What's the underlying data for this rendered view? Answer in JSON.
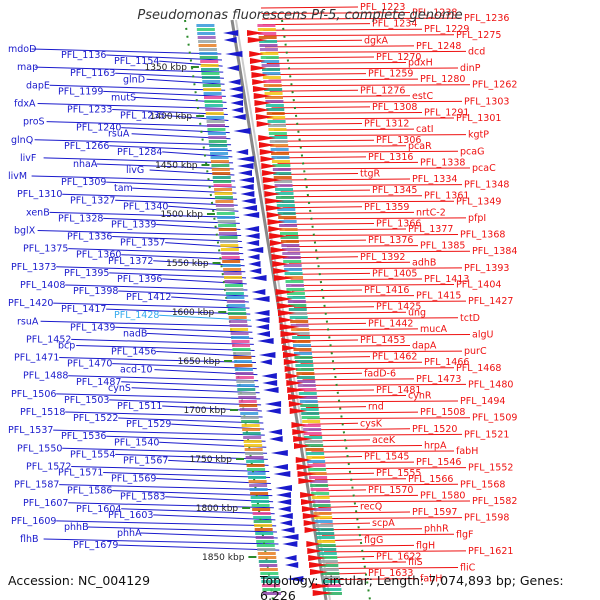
{
  "title": "Pseudomonas fluorescens Pf-5, complete genome",
  "accession": "Accession: NC_004129",
  "topology": "Topology: circular; Length: 7,074,893 bp; Genes: 6,226",
  "colors": {
    "left": "#1a1acc",
    "right": "#ee1111",
    "highlight": "#33aaee",
    "tick": "#2a8a2a"
  },
  "kbp_ticks": [
    "1350 kbp",
    "1400 kbp",
    "1450 kbp",
    "1500 kbp",
    "1550 kbp",
    "1600 kbp",
    "1650 kbp",
    "1700 kbp",
    "1750 kbp",
    "1800 kbp",
    "1850 kbp"
  ],
  "left_labels": [
    {
      "text": "mdoD"
    },
    {
      "text": "PFL_1136"
    },
    {
      "text": "PFL_1154"
    },
    {
      "text": "map"
    },
    {
      "text": "PFL_1163"
    },
    {
      "text": "glnD"
    },
    {
      "text": "dapE"
    },
    {
      "text": "PFL_1199"
    },
    {
      "text": "mutS"
    },
    {
      "text": "fdxA"
    },
    {
      "text": "PFL_1233"
    },
    {
      "text": "PFL_1235"
    },
    {
      "text": "proS"
    },
    {
      "text": "PFL_1240"
    },
    {
      "text": "rsuA"
    },
    {
      "text": "glnQ"
    },
    {
      "text": "PFL_1266"
    },
    {
      "text": "PFL_1284"
    },
    {
      "text": "livF"
    },
    {
      "text": "nhaA"
    },
    {
      "text": "livG"
    },
    {
      "text": "livM"
    },
    {
      "text": "PFL_1309"
    },
    {
      "text": "tam"
    },
    {
      "text": "PFL_1310"
    },
    {
      "text": "PFL_1327"
    },
    {
      "text": "PFL_1340"
    },
    {
      "text": "xenB"
    },
    {
      "text": "PFL_1328"
    },
    {
      "text": "PFL_1339"
    },
    {
      "text": "bglX"
    },
    {
      "text": "PFL_1336"
    },
    {
      "text": "PFL_1357"
    },
    {
      "text": "PFL_1375"
    },
    {
      "text": "PFL_1360"
    },
    {
      "text": "PFL_1372"
    },
    {
      "text": "PFL_1373"
    },
    {
      "text": "PFL_1395"
    },
    {
      "text": "PFL_1396"
    },
    {
      "text": "PFL_1408"
    },
    {
      "text": "PFL_1398"
    },
    {
      "text": "PFL_1412"
    },
    {
      "text": "PFL_1420"
    },
    {
      "text": "PFL_1417"
    },
    {
      "text": "PFL_1428",
      "highlight": true
    },
    {
      "text": "rsuA"
    },
    {
      "text": "PFL_1439"
    },
    {
      "text": "nadB"
    },
    {
      "text": "PFL_1452"
    },
    {
      "text": "bcp"
    },
    {
      "text": "PFL_1456"
    },
    {
      "text": "PFL_1471"
    },
    {
      "text": "PFL_1470"
    },
    {
      "text": "acd-10"
    },
    {
      "text": "PFL_1488"
    },
    {
      "text": "PFL_1487"
    },
    {
      "text": "cynS"
    },
    {
      "text": "PFL_1506"
    },
    {
      "text": "PFL_1503"
    },
    {
      "text": "PFL_1511"
    },
    {
      "text": "PFL_1518"
    },
    {
      "text": "PFL_1522"
    },
    {
      "text": "PFL_1529"
    },
    {
      "text": "PFL_1537"
    },
    {
      "text": "PFL_1536"
    },
    {
      "text": "PFL_1540"
    },
    {
      "text": "PFL_1550"
    },
    {
      "text": "PFL_1554"
    },
    {
      "text": "PFL_1567"
    },
    {
      "text": "PFL_1572"
    },
    {
      "text": "PFL_1571"
    },
    {
      "text": "PFL_1569"
    },
    {
      "text": "PFL_1587"
    },
    {
      "text": "PFL_1586"
    },
    {
      "text": "PFL_1583"
    },
    {
      "text": "PFL_1607"
    },
    {
      "text": "PFL_1604"
    },
    {
      "text": "PFL_1603"
    },
    {
      "text": "PFL_1609"
    },
    {
      "text": "phhB"
    },
    {
      "text": "phhA"
    },
    {
      "text": "flhB"
    },
    {
      "text": "PFL_1679"
    }
  ],
  "right_labels": [
    {
      "text": "PFL_1223"
    },
    {
      "text": "PFL_1238"
    },
    {
      "text": "PFL_1236"
    },
    {
      "text": "PFL_1234"
    },
    {
      "text": "PFL_1229"
    },
    {
      "text": "PFL_1275"
    },
    {
      "text": "dgkA"
    },
    {
      "text": "PFL_1248"
    },
    {
      "text": "dcd"
    },
    {
      "text": "PFL_1270"
    },
    {
      "text": "pdxH"
    },
    {
      "text": "dinP"
    },
    {
      "text": "PFL_1259"
    },
    {
      "text": "PFL_1280"
    },
    {
      "text": "PFL_1262"
    },
    {
      "text": "PFL_1276"
    },
    {
      "text": "estC"
    },
    {
      "text": "PFL_1303"
    },
    {
      "text": "PFL_1308"
    },
    {
      "text": "PFL_1291"
    },
    {
      "text": "PFL_1301"
    },
    {
      "text": "PFL_1312"
    },
    {
      "text": "catI"
    },
    {
      "text": "kgtP"
    },
    {
      "text": "PFL_1306"
    },
    {
      "text": "pcaR"
    },
    {
      "text": "pcaG"
    },
    {
      "text": "PFL_1316"
    },
    {
      "text": "PFL_1338"
    },
    {
      "text": "pcaC"
    },
    {
      "text": "ttgR"
    },
    {
      "text": "PFL_1334"
    },
    {
      "text": "PFL_1348"
    },
    {
      "text": "PFL_1345"
    },
    {
      "text": "PFL_1361"
    },
    {
      "text": "PFL_1349"
    },
    {
      "text": "PFL_1359"
    },
    {
      "text": "nrtC-2"
    },
    {
      "text": "pfpI"
    },
    {
      "text": "PFL_1366"
    },
    {
      "text": "PFL_1377"
    },
    {
      "text": "PFL_1368"
    },
    {
      "text": "PFL_1376"
    },
    {
      "text": "PFL_1385"
    },
    {
      "text": "PFL_1384"
    },
    {
      "text": "PFL_1392"
    },
    {
      "text": "adhB"
    },
    {
      "text": "PFL_1393"
    },
    {
      "text": "PFL_1405"
    },
    {
      "text": "PFL_1413"
    },
    {
      "text": "PFL_1404"
    },
    {
      "text": "PFL_1416"
    },
    {
      "text": "PFL_1415"
    },
    {
      "text": "PFL_1427"
    },
    {
      "text": "PFL_1425"
    },
    {
      "text": "ung"
    },
    {
      "text": "tctD"
    },
    {
      "text": "PFL_1442"
    },
    {
      "text": "mucA"
    },
    {
      "text": "algU"
    },
    {
      "text": "PFL_1453"
    },
    {
      "text": "dapA"
    },
    {
      "text": "purC"
    },
    {
      "text": "PFL_1462"
    },
    {
      "text": "PFL_1466"
    },
    {
      "text": "PFL_1468"
    },
    {
      "text": "fadD-6"
    },
    {
      "text": "PFL_1473"
    },
    {
      "text": "PFL_1480"
    },
    {
      "text": "PFL_1481"
    },
    {
      "text": "cynR"
    },
    {
      "text": "PFL_1494"
    },
    {
      "text": "rnd"
    },
    {
      "text": "PFL_1508"
    },
    {
      "text": "PFL_1509"
    },
    {
      "text": "cysK"
    },
    {
      "text": "PFL_1520"
    },
    {
      "text": "PFL_1521"
    },
    {
      "text": "aceK"
    },
    {
      "text": "hrpA"
    },
    {
      "text": "fabH"
    },
    {
      "text": "PFL_1545"
    },
    {
      "text": "PFL_1546"
    },
    {
      "text": "PFL_1552"
    },
    {
      "text": "PFL_1555"
    },
    {
      "text": "PFL_1566"
    },
    {
      "text": "PFL_1568"
    },
    {
      "text": "PFL_1570"
    },
    {
      "text": "PFL_1580"
    },
    {
      "text": "PFL_1582"
    },
    {
      "text": "recQ"
    },
    {
      "text": "PFL_1597"
    },
    {
      "text": "PFL_1598"
    },
    {
      "text": "scpA"
    },
    {
      "text": "phhR"
    },
    {
      "text": "flgF"
    },
    {
      "text": "flgG"
    },
    {
      "text": "flgH"
    },
    {
      "text": "PFL_1621"
    },
    {
      "text": "PFL_1622"
    },
    {
      "text": "fliS"
    },
    {
      "text": "fliC"
    },
    {
      "text": "PFL_1633"
    },
    {
      "text": "fabH"
    }
  ]
}
